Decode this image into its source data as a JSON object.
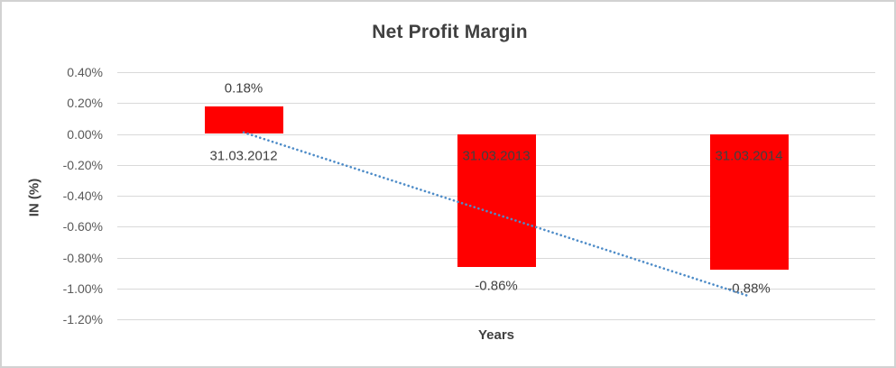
{
  "chart_data": {
    "type": "bar",
    "title": "Net Profit Margin",
    "xlabel": "Years",
    "ylabel": "IN (%)",
    "categories": [
      "31.03.2012",
      "31.03.2013",
      "31.03.2014"
    ],
    "values": [
      0.18,
      -0.86,
      -0.88
    ],
    "data_labels": [
      "0.18%",
      "-0.86%",
      "-0.88%"
    ],
    "ylim": [
      -1.2,
      0.4
    ],
    "ytick_step": 0.2,
    "ytick_labels": [
      "0.40%",
      "0.20%",
      "0.00%",
      "-0.20%",
      "-0.40%",
      "-0.60%",
      "-0.80%",
      "-1.00%",
      "-1.20%"
    ],
    "grid": true,
    "legend": false,
    "bar_color": "#ff0000",
    "label_color": "#404040",
    "tick_color": "#595959",
    "gridline_color": "#d9d9d9",
    "trendline": {
      "style": "dotted",
      "color": "#4e8cc8",
      "start_category_index": 0,
      "end_category_index": 2,
      "start_value": 0.01,
      "end_value": -1.05
    }
  }
}
